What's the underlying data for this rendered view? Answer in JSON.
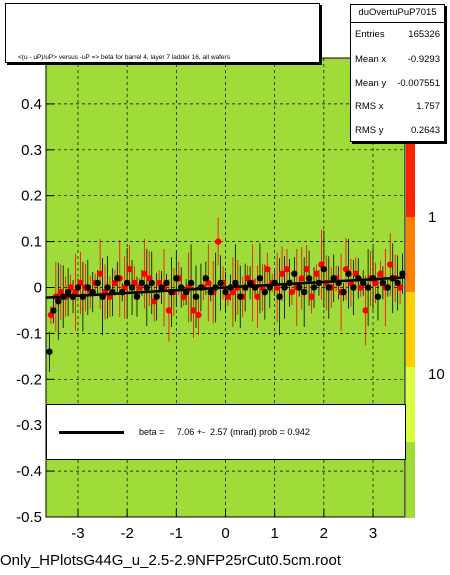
{
  "chart_data": {
    "type": "scatter",
    "title": "<(u - uP)/uP> versus -uP => beta for barrel 4, layer 7 ladder 16, all wafers",
    "xlim": [
      -3.65,
      3.65
    ],
    "ylim": [
      -0.5,
      0.5
    ],
    "x_ticks": [
      "-3",
      "-2",
      "-1",
      "0",
      "1",
      "2",
      "3"
    ],
    "y_ticks": [
      "-0.5",
      "-0.4",
      "-0.3",
      "-0.2",
      "-0.1",
      "0",
      "0.1",
      "0.2",
      "0.3",
      "0.4"
    ],
    "z_ticks": [
      "10",
      "1",
      "10"
    ],
    "grid": true,
    "series": [
      {
        "name": "red points",
        "color": "#ff0000",
        "x": [
          -3.55,
          -3.45,
          -3.35,
          -3.25,
          -3.15,
          -3.05,
          -2.95,
          -2.85,
          -2.75,
          -2.65,
          -2.55,
          -2.45,
          -2.35,
          -2.25,
          -2.15,
          -2.05,
          -1.95,
          -1.85,
          -1.75,
          -1.65,
          -1.55,
          -1.45,
          -1.35,
          -1.25,
          -1.15,
          -1.05,
          -0.95,
          -0.85,
          -0.75,
          -0.65,
          -0.55,
          -0.45,
          -0.35,
          -0.25,
          -0.15,
          -0.05,
          0.05,
          0.15,
          0.25,
          0.35,
          0.45,
          0.55,
          0.65,
          0.75,
          0.85,
          0.95,
          1.05,
          1.15,
          1.25,
          1.35,
          1.45,
          1.55,
          1.65,
          1.75,
          1.85,
          1.95,
          2.05,
          2.15,
          2.25,
          2.35,
          2.45,
          2.55,
          2.65,
          2.75,
          2.85,
          2.95,
          3.05,
          3.15,
          3.25,
          3.35,
          3.45,
          3.55
        ],
        "y": [
          -0.06,
          -0.02,
          -0.01,
          -0.02,
          0.0,
          -0.01,
          0.01,
          0.0,
          -0.01,
          0.01,
          0.03,
          -0.01,
          -0.02,
          0.01,
          0.02,
          0.0,
          0.04,
          0.01,
          0.0,
          0.03,
          0.02,
          -0.03,
          0.01,
          0.0,
          -0.05,
          -0.01,
          0.02,
          -0.02,
          0.0,
          -0.05,
          -0.06,
          0.0,
          0.01,
          -0.01,
          0.1,
          0.01,
          -0.02,
          -0.01,
          0.0,
          -0.02,
          0.02,
          0.01,
          -0.02,
          0.0,
          0.04,
          0.01,
          0.0,
          0.03,
          0.04,
          -0.01,
          0.0,
          0.02,
          0.04,
          -0.02,
          0.03,
          0.05,
          0.01,
          0.0,
          0.02,
          -0.01,
          0.04,
          0.01,
          0.03,
          0.0,
          -0.05,
          0.02,
          0.01,
          0.03,
          0.0,
          0.05,
          0.02,
          0.0
        ]
      },
      {
        "name": "black points",
        "color": "#000000",
        "x": [
          -3.58,
          -3.5,
          -3.4,
          -3.3,
          -3.2,
          -3.1,
          -3.0,
          -2.9,
          -2.8,
          -2.7,
          -2.6,
          -2.5,
          -2.4,
          -2.3,
          -2.2,
          -2.1,
          -2.0,
          -1.9,
          -1.8,
          -1.7,
          -1.6,
          -1.5,
          -1.4,
          -1.3,
          -1.2,
          -1.1,
          -1.0,
          -0.9,
          -0.8,
          -0.7,
          -0.6,
          -0.5,
          -0.4,
          -0.3,
          -0.2,
          -0.1,
          0.0,
          0.1,
          0.2,
          0.3,
          0.4,
          0.5,
          0.6,
          0.7,
          0.8,
          0.9,
          1.0,
          1.1,
          1.2,
          1.3,
          1.4,
          1.5,
          1.6,
          1.7,
          1.8,
          1.9,
          2.0,
          2.1,
          2.2,
          2.3,
          2.4,
          2.5,
          2.6,
          2.7,
          2.8,
          2.9,
          3.0,
          3.1,
          3.2,
          3.3,
          3.4,
          3.5,
          3.6
        ],
        "y": [
          -0.14,
          -0.05,
          -0.03,
          -0.02,
          -0.01,
          -0.02,
          0.0,
          -0.02,
          0.0,
          -0.01,
          0.01,
          -0.02,
          0.0,
          -0.01,
          0.02,
          -0.01,
          0.01,
          0.0,
          -0.02,
          0.01,
          0.0,
          0.01,
          -0.02,
          0.0,
          0.01,
          -0.01,
          0.02,
          0.0,
          -0.01,
          0.01,
          -0.02,
          0.0,
          0.02,
          -0.01,
          0.0,
          0.01,
          -0.01,
          0.0,
          0.01,
          -0.02,
          0.0,
          0.01,
          0.0,
          0.02,
          -0.01,
          0.0,
          0.01,
          -0.02,
          0.0,
          0.01,
          0.03,
          0.0,
          -0.01,
          0.02,
          0.0,
          0.01,
          0.04,
          0.0,
          0.02,
          0.01,
          -0.01,
          0.03,
          0.0,
          0.02,
          0.01,
          0.0,
          0.02,
          -0.02,
          0.01,
          0.0,
          0.02,
          0.01,
          0.03
        ]
      }
    ],
    "fit_line": {
      "x": [
        -3.65,
        3.65
      ],
      "y": [
        -0.022,
        0.022
      ]
    }
  },
  "stats": {
    "title": "duOvertuPuP7015",
    "rows": [
      {
        "k": "Entries",
        "v": "165326"
      },
      {
        "k": "Mean x",
        "v": "-0.9293"
      },
      {
        "k": "Mean y",
        "v": "-0.007551"
      },
      {
        "k": "RMS x",
        "v": "1.757"
      },
      {
        "k": "RMS y",
        "v": "0.2643"
      }
    ]
  },
  "fit_legend": {
    "text": "beta =     7.06 +-  2.57 (mrad) prob = 0.942"
  },
  "file_label": "Only_HPlotsG44G_u_2.5-2.9NFP25rCut0.5cm.root",
  "colors": {
    "plot_fill": "#9fdc3a",
    "grid": "#000000",
    "red_point": "#ff0000",
    "black_point": "#000000"
  }
}
